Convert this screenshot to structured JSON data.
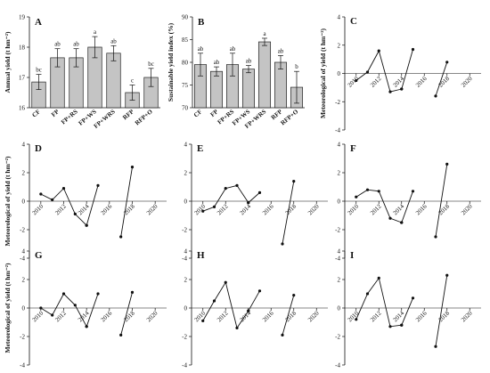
{
  "figure": {
    "panels_bar": [
      {
        "letter": "A",
        "ylabel": "Annual yield (t hm⁻²)",
        "ylim": [
          16,
          19
        ],
        "yticks": [
          16,
          17,
          18,
          19
        ],
        "categories": [
          "CF",
          "FP",
          "FP+RS",
          "FP+WS",
          "FP+WRS",
          "RFP",
          "RFP+O"
        ],
        "values": [
          16.85,
          17.65,
          17.65,
          18.0,
          17.8,
          16.5,
          17.0
        ],
        "errors": [
          0.25,
          0.3,
          0.3,
          0.35,
          0.25,
          0.25,
          0.3
        ],
        "labels": [
          "bc",
          "ab",
          "ab",
          "a",
          "ab",
          "c",
          "bc"
        ]
      },
      {
        "letter": "B",
        "ylabel": "Sustainable yield index (%)",
        "ylim": [
          70,
          90
        ],
        "yticks": [
          70,
          75,
          80,
          85,
          90
        ],
        "categories": [
          "CF",
          "FP",
          "FP+RS",
          "FP+WS",
          "FP+WRS",
          "RFP",
          "RFP+O"
        ],
        "values": [
          79.5,
          78.0,
          79.5,
          78.5,
          84.5,
          80.0,
          74.5
        ],
        "errors": [
          2.5,
          1.0,
          2.5,
          0.8,
          0.8,
          1.5,
          3.5
        ],
        "labels": [
          "ab",
          "ab",
          "ab",
          "ab",
          "a",
          "ab",
          "b"
        ]
      }
    ],
    "panels_line": [
      {
        "letter": "C",
        "ylabel": "Meteorological of yield (t hm⁻²)",
        "show_xticks": true,
        "segments": [
          {
            "x": [
              2010,
              2011,
              2012,
              2013,
              2014
            ],
            "y": [
              -0.5,
              0.1,
              1.6,
              -1.3,
              -1.1
            ]
          },
          {
            "x": [
              2014,
              2015
            ],
            "y": [
              -1.1,
              1.7
            ]
          },
          {
            "x": [
              2017,
              2018
            ],
            "y": [
              -1.6,
              0.8
            ]
          }
        ]
      },
      {
        "letter": "D",
        "ylabel": "Meteorological of yield (t hm⁻²)",
        "show_xticks": true,
        "segments": [
          {
            "x": [
              2010,
              2011,
              2012,
              2013,
              2014
            ],
            "y": [
              0.5,
              0.1,
              0.9,
              -0.9,
              -1.7
            ]
          },
          {
            "x": [
              2014,
              2015
            ],
            "y": [
              -1.7,
              1.1
            ]
          },
          {
            "x": [
              2017,
              2018
            ],
            "y": [
              -2.5,
              2.4
            ]
          }
        ]
      },
      {
        "letter": "E",
        "ylabel": "",
        "show_xticks": true,
        "segments": [
          {
            "x": [
              2010,
              2011,
              2012,
              2013,
              2014
            ],
            "y": [
              -0.7,
              -0.4,
              0.9,
              1.1,
              -0.1
            ]
          },
          {
            "x": [
              2014,
              2015
            ],
            "y": [
              -0.1,
              0.6
            ]
          },
          {
            "x": [
              2017,
              2018
            ],
            "y": [
              -3.0,
              1.4
            ]
          }
        ]
      },
      {
        "letter": "F",
        "ylabel": "",
        "show_xticks": true,
        "segments": [
          {
            "x": [
              2010,
              2011,
              2012,
              2013,
              2014
            ],
            "y": [
              0.3,
              0.8,
              0.7,
              -1.2,
              -1.5
            ]
          },
          {
            "x": [
              2014,
              2015
            ],
            "y": [
              -1.5,
              0.7
            ]
          },
          {
            "x": [
              2017,
              2018
            ],
            "y": [
              -2.5,
              2.6
            ]
          }
        ]
      },
      {
        "letter": "G",
        "ylabel": "Meteorological of yield (t hm⁻²)",
        "show_xticks": true,
        "segments": [
          {
            "x": [
              2010,
              2011,
              2012,
              2013,
              2014
            ],
            "y": [
              0.0,
              -0.5,
              1.0,
              0.2,
              -1.3
            ]
          },
          {
            "x": [
              2014,
              2015
            ],
            "y": [
              -1.3,
              1.0
            ]
          },
          {
            "x": [
              2017,
              2018
            ],
            "y": [
              -1.9,
              1.1
            ]
          }
        ]
      },
      {
        "letter": "H",
        "ylabel": "",
        "show_xticks": true,
        "segments": [
          {
            "x": [
              2010,
              2011,
              2012,
              2013,
              2014
            ],
            "y": [
              -0.9,
              0.5,
              1.8,
              -1.4,
              -0.2
            ]
          },
          {
            "x": [
              2014,
              2015
            ],
            "y": [
              -0.2,
              1.2
            ]
          },
          {
            "x": [
              2017,
              2018
            ],
            "y": [
              -1.9,
              0.9
            ]
          }
        ]
      },
      {
        "letter": "I",
        "ylabel": "",
        "show_xticks": true,
        "segments": [
          {
            "x": [
              2010,
              2011,
              2012,
              2013,
              2014
            ],
            "y": [
              -0.8,
              1.0,
              2.1,
              -1.3,
              -1.2
            ]
          },
          {
            "x": [
              2014,
              2015
            ],
            "y": [
              -1.2,
              0.7
            ]
          },
          {
            "x": [
              2017,
              2018
            ],
            "y": [
              -2.7,
              2.3
            ]
          }
        ]
      }
    ],
    "line_axes": {
      "ylim": [
        -4,
        4
      ],
      "yticks": [
        -4,
        -2,
        0,
        2,
        4
      ],
      "xlim": [
        2009,
        2021
      ],
      "xticks": [
        2010,
        2012,
        2014,
        2016,
        2018,
        2020
      ]
    }
  },
  "chart_data": [
    {
      "type": "bar",
      "panel": "A",
      "categories": [
        "CF",
        "FP",
        "FP+RS",
        "FP+WS",
        "FP+WRS",
        "RFP",
        "RFP+O"
      ],
      "values": [
        16.85,
        17.65,
        17.65,
        18.0,
        17.8,
        16.5,
        17.0
      ],
      "ylabel": "Annual yield (t hm⁻²)",
      "ylim": [
        16,
        19
      ]
    },
    {
      "type": "bar",
      "panel": "B",
      "categories": [
        "CF",
        "FP",
        "FP+RS",
        "FP+WS",
        "FP+WRS",
        "RFP",
        "RFP+O"
      ],
      "values": [
        79.5,
        78.0,
        79.5,
        78.5,
        84.5,
        80.0,
        74.5
      ],
      "ylabel": "Sustainable yield index (%)",
      "ylim": [
        70,
        90
      ]
    },
    {
      "type": "line",
      "panel": "C",
      "ylim": [
        -4,
        4
      ],
      "x": [
        2010,
        2011,
        2012,
        2013,
        2014,
        2015,
        2017,
        2018
      ],
      "y": [
        -0.5,
        0.1,
        1.6,
        -1.3,
        -1.1,
        1.7,
        -1.6,
        0.8
      ]
    },
    {
      "type": "line",
      "panel": "D",
      "ylim": [
        -4,
        4
      ],
      "x": [
        2010,
        2011,
        2012,
        2013,
        2014,
        2015,
        2017,
        2018
      ],
      "y": [
        0.5,
        0.1,
        0.9,
        -0.9,
        -1.7,
        1.1,
        -2.5,
        2.4
      ]
    },
    {
      "type": "line",
      "panel": "E",
      "ylim": [
        -4,
        4
      ],
      "x": [
        2010,
        2011,
        2012,
        2013,
        2014,
        2015,
        2017,
        2018
      ],
      "y": [
        -0.7,
        -0.4,
        0.9,
        1.1,
        -0.1,
        0.6,
        -3.0,
        1.4
      ]
    },
    {
      "type": "line",
      "panel": "F",
      "ylim": [
        -4,
        4
      ],
      "x": [
        2010,
        2011,
        2012,
        2013,
        2014,
        2015,
        2017,
        2018
      ],
      "y": [
        0.3,
        0.8,
        0.7,
        -1.2,
        -1.5,
        0.7,
        -2.5,
        2.6
      ]
    },
    {
      "type": "line",
      "panel": "G",
      "ylim": [
        -4,
        4
      ],
      "x": [
        2010,
        2011,
        2012,
        2013,
        2014,
        2015,
        2017,
        2018
      ],
      "y": [
        0.0,
        -0.5,
        1.0,
        0.2,
        -1.3,
        1.0,
        -1.9,
        1.1
      ]
    },
    {
      "type": "line",
      "panel": "H",
      "ylim": [
        -4,
        4
      ],
      "x": [
        2010,
        2011,
        2012,
        2013,
        2014,
        2015,
        2017,
        2018
      ],
      "y": [
        -0.9,
        0.5,
        1.8,
        -1.4,
        -0.2,
        1.2,
        -1.9,
        0.9
      ]
    },
    {
      "type": "line",
      "panel": "I",
      "ylim": [
        -4,
        4
      ],
      "x": [
        2010,
        2011,
        2012,
        2013,
        2014,
        2015,
        2017,
        2018
      ],
      "y": [
        -0.8,
        1.0,
        2.1,
        -1.3,
        -1.2,
        0.7,
        -2.7,
        2.3
      ]
    }
  ]
}
